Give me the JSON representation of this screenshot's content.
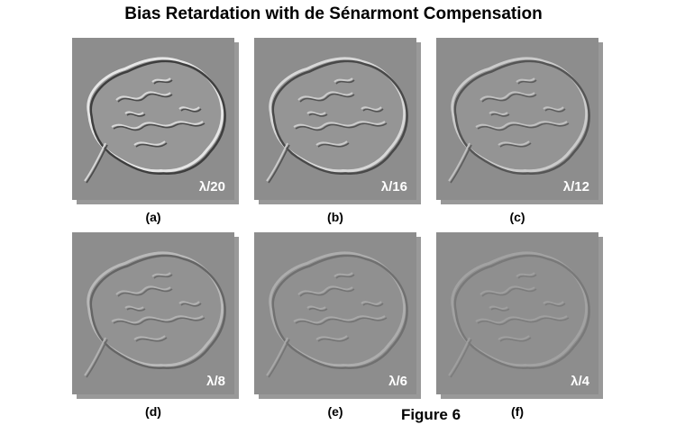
{
  "title": "Bias Retardation with de Sénarmont Compensation",
  "panels": [
    {
      "label": "(a)",
      "retardation": "λ/20"
    },
    {
      "label": "(b)",
      "retardation": "λ/16"
    },
    {
      "label": "(c)",
      "retardation": "λ/12"
    },
    {
      "label": "(d)",
      "retardation": "λ/8"
    },
    {
      "label": "(e)",
      "retardation": "λ/6"
    },
    {
      "label": "(f)",
      "retardation": "λ/4"
    }
  ],
  "caption": "Figure 6"
}
